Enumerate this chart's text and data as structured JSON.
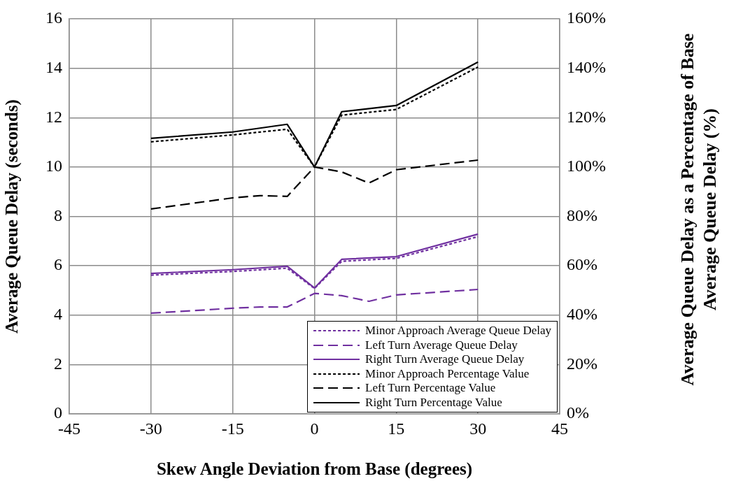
{
  "chart_data": {
    "type": "line",
    "xlabel": "Skew Angle Deviation from Base (degrees)",
    "ylabel": "Average Queue Delay (seconds)",
    "y2label": "Average Queue Delay as a Percentage of Base Average Queue Delay (%)",
    "xlim": [
      -45,
      45
    ],
    "xticks": [
      -45,
      -30,
      -15,
      0,
      15,
      30,
      45
    ],
    "ylim": [
      0,
      16
    ],
    "yticks": [
      0,
      2,
      4,
      6,
      8,
      10,
      12,
      14,
      16
    ],
    "y2lim": [
      0,
      160
    ],
    "y2ticks": [
      {
        "value": 0,
        "label": "0%"
      },
      {
        "value": 20,
        "label": "20%"
      },
      {
        "value": 40,
        "label": "40%"
      },
      {
        "value": 60,
        "label": "60%"
      },
      {
        "value": 80,
        "label": "80%"
      },
      {
        "value": 100,
        "label": "100%"
      },
      {
        "value": 120,
        "label": "120%"
      },
      {
        "value": 140,
        "label": "140%"
      },
      {
        "value": 160,
        "label": "160%"
      }
    ],
    "grid": true,
    "legend": "bottom right",
    "marker": "none",
    "series": [
      {
        "name": "Minor Approach Average Queue Delay",
        "color": "#7030a0",
        "line_style": "dotted",
        "x": [
          -30,
          -15,
          -5,
          0,
          5,
          15,
          30
        ],
        "values": [
          5.62,
          5.77,
          5.9,
          5.08,
          6.18,
          6.3,
          7.18
        ]
      },
      {
        "name": "Left Turn Average Queue Delay",
        "color": "#7030a0",
        "line_style": "dashed",
        "x": [
          -30,
          -15,
          -10,
          -5,
          0,
          5,
          10,
          15,
          30
        ],
        "values": [
          4.08,
          4.28,
          4.33,
          4.33,
          4.88,
          4.79,
          4.56,
          4.82,
          5.04
        ]
      },
      {
        "name": "Right Turn Average Queue Delay",
        "color": "#7030a0",
        "line_style": "solid",
        "x": [
          -30,
          -15,
          -5,
          0,
          5,
          15,
          30
        ],
        "values": [
          5.69,
          5.84,
          5.98,
          5.1,
          6.26,
          6.37,
          7.28
        ]
      },
      {
        "name": "Minor Approach Percentage Value",
        "color": "#000000",
        "line_style": "dotted",
        "axis": "y2",
        "x": [
          -30,
          -15,
          -5,
          0,
          5,
          15,
          30
        ],
        "values": [
          110.2,
          113,
          115.3,
          100,
          121,
          123.3,
          140.5
        ]
      },
      {
        "name": "Left Turn Percentage Value",
        "color": "#000000",
        "line_style": "dashed",
        "axis": "y2",
        "x": [
          -30,
          -15,
          -10,
          -5,
          0,
          5,
          10,
          15,
          30
        ],
        "values": [
          83,
          87.5,
          88.4,
          88.1,
          100,
          98,
          93.5,
          98.9,
          102.8
        ]
      },
      {
        "name": "Right Turn Percentage Value",
        "color": "#000000",
        "line_style": "solid",
        "axis": "y2",
        "x": [
          -30,
          -15,
          -5,
          0,
          5,
          15,
          30
        ],
        "values": [
          111.6,
          114.2,
          117.3,
          100,
          122.4,
          124.9,
          142.5
        ]
      }
    ]
  }
}
